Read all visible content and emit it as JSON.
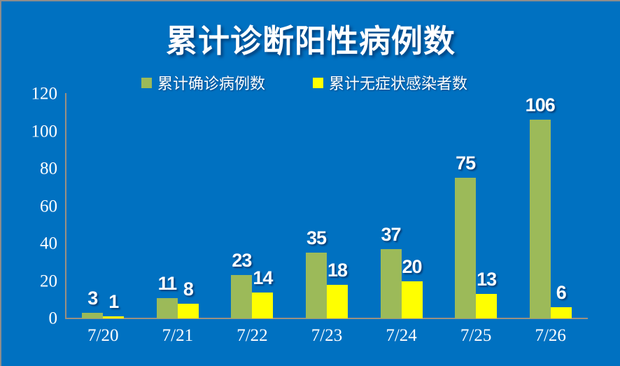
{
  "page": {
    "background": "#0071C1",
    "border_color": "#8C8C8C",
    "axis_color": "#9C9180",
    "text_color": "#FFFFFF"
  },
  "title": "累计诊断阳性病例数",
  "legend": {
    "items": [
      {
        "label": "累计确诊病例数",
        "color": "#9CBA59"
      },
      {
        "label": "累计无症状感染者数",
        "color": "#FFFF00"
      }
    ]
  },
  "chart_data": {
    "type": "bar",
    "title": "累计诊断阳性病例数",
    "categories": [
      "7/20",
      "7/21",
      "7/22",
      "7/23",
      "7/24",
      "7/25",
      "7/26"
    ],
    "series": [
      {
        "name": "累计确诊病例数",
        "color": "#9CBA59",
        "values": [
          3,
          11,
          23,
          35,
          37,
          75,
          106
        ]
      },
      {
        "name": "累计无症状感染者数",
        "color": "#FFFF00",
        "values": [
          1,
          8,
          14,
          18,
          20,
          13,
          6
        ]
      }
    ],
    "xlabel": "",
    "ylabel": "",
    "ylim": [
      0,
      120
    ],
    "yticks": [
      0,
      20,
      40,
      60,
      80,
      100,
      120
    ],
    "grid": false,
    "legend_position": "top",
    "value_labels": true
  }
}
